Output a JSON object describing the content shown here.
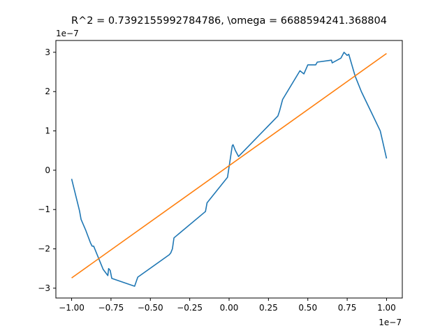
{
  "chart_data": {
    "type": "line",
    "title": "R^2 = 0.7392155992784786, \\omega = 6688594241.368804",
    "xlabel": "",
    "ylabel": "",
    "x_offset_label": "1e−7",
    "y_offset_label": "1e−7",
    "xlim": [
      -1.1,
      1.1
    ],
    "ylim": [
      -3.25,
      3.3
    ],
    "x_ticks": [
      -1.0,
      -0.75,
      -0.5,
      -0.25,
      0.0,
      0.25,
      0.5,
      0.75,
      1.0
    ],
    "x_tick_labels": [
      "−1.00",
      "−0.75",
      "−0.50",
      "−0.25",
      "0.00",
      "0.25",
      "0.50",
      "0.75",
      "1.00"
    ],
    "y_ticks": [
      -3,
      -2,
      -1,
      0,
      1,
      2,
      3
    ],
    "y_tick_labels": [
      "−3",
      "−2",
      "−1",
      "0",
      "1",
      "2",
      "3"
    ],
    "grid": false,
    "legend": "none",
    "series": [
      {
        "color": "#1f77b4",
        "x": [
          -1.0,
          -0.95,
          -0.94,
          -0.91,
          -0.88,
          -0.87,
          -0.86,
          -0.8,
          -0.77,
          -0.765,
          -0.755,
          -0.745,
          -0.6,
          -0.58,
          -0.38,
          -0.37,
          -0.36,
          -0.35,
          -0.15,
          -0.14,
          -0.01,
          0.02,
          0.025,
          0.04,
          0.06,
          0.31,
          0.32,
          0.34,
          0.45,
          0.475,
          0.5,
          0.55,
          0.56,
          0.65,
          0.655,
          0.71,
          0.73,
          0.75,
          0.76,
          0.8,
          0.84,
          0.9,
          0.96,
          1.0
        ],
        "y": [
          -0.22,
          -1.03,
          -1.25,
          -1.53,
          -1.85,
          -1.93,
          -1.93,
          -2.52,
          -2.68,
          -2.5,
          -2.55,
          -2.75,
          -2.95,
          -2.72,
          -2.15,
          -2.1,
          -2.0,
          -1.72,
          -1.05,
          -0.83,
          -0.18,
          0.62,
          0.65,
          0.5,
          0.35,
          1.38,
          1.5,
          1.8,
          2.53,
          2.45,
          2.68,
          2.68,
          2.75,
          2.8,
          2.73,
          2.85,
          3.0,
          2.92,
          2.95,
          2.4,
          2.0,
          1.5,
          1.0,
          0.3
        ]
      },
      {
        "color": "#ff7f0e",
        "x": [
          -1.0,
          1.0
        ],
        "y": [
          -2.74,
          2.97
        ]
      }
    ]
  }
}
